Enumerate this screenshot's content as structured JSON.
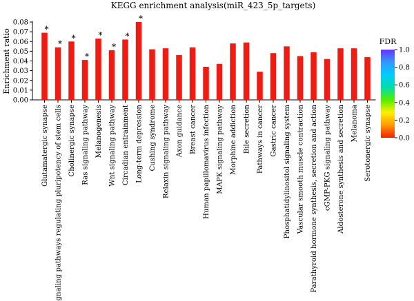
{
  "chart_data": {
    "type": "bar",
    "title": "KEGG enrichment analysis(miR_423_5p_targets)",
    "xlabel": "",
    "ylabel": "Enrichment ratio",
    "ylim": [
      0,
      0.08
    ],
    "yticks": [
      "0.00",
      "0.01",
      "0.02",
      "0.03",
      "0.04",
      "0.05",
      "0.06",
      "0.07",
      "0.08"
    ],
    "categories": [
      "Glutamatergic synapse",
      "Signaling pathways regulating pluripotency of stem cells",
      "Cholinergic synapse",
      "Ras signaling pathway",
      "Melanogenesis",
      "Wnt signaling pathway",
      "Circadian entrainment",
      "Long-term depression",
      "Cushing syndrome",
      "Relaxin signaling pathway",
      "Axon guidance",
      "Breast cancer",
      "Human papillomavirus infection",
      "MAPK signaling pathway",
      "Morphine addiction",
      "Bile secretion",
      "Pathways in cancer",
      "Gastric cancer",
      "Phosphatidylinositol signaling system",
      "Vascular smooth muscle contraction",
      "Parathyroid hormone synthesis, secretion and action",
      "cGMP-PKG signaling pathway",
      "Aldosterone synthesis and secretion",
      "Melanoma",
      "Serotonergic synapse"
    ],
    "values": [
      0.069,
      0.054,
      0.06,
      0.041,
      0.063,
      0.051,
      0.062,
      0.08,
      0.052,
      0.053,
      0.046,
      0.054,
      0.034,
      0.037,
      0.058,
      0.059,
      0.029,
      0.048,
      0.055,
      0.045,
      0.049,
      0.042,
      0.053,
      0.053,
      0.044
    ],
    "significant": [
      true,
      true,
      true,
      true,
      true,
      true,
      true,
      true,
      false,
      false,
      false,
      false,
      false,
      false,
      false,
      false,
      false,
      false,
      false,
      false,
      false,
      false,
      false,
      false,
      false
    ],
    "significance_marker": "*",
    "bar_color": "#ee1c12",
    "colorbar": {
      "label": "FDR",
      "range": [
        0,
        1
      ],
      "ticks": [
        "0.0",
        "0.2",
        "0.4",
        "0.6",
        "0.8",
        "1.0"
      ],
      "colors": [
        "#ee2200",
        "#ff9900",
        "#ffee00",
        "#55ee00",
        "#00ddaa",
        "#00ccff",
        "#3399ff",
        "#6633ff"
      ]
    },
    "grid": false,
    "legend": "right"
  }
}
